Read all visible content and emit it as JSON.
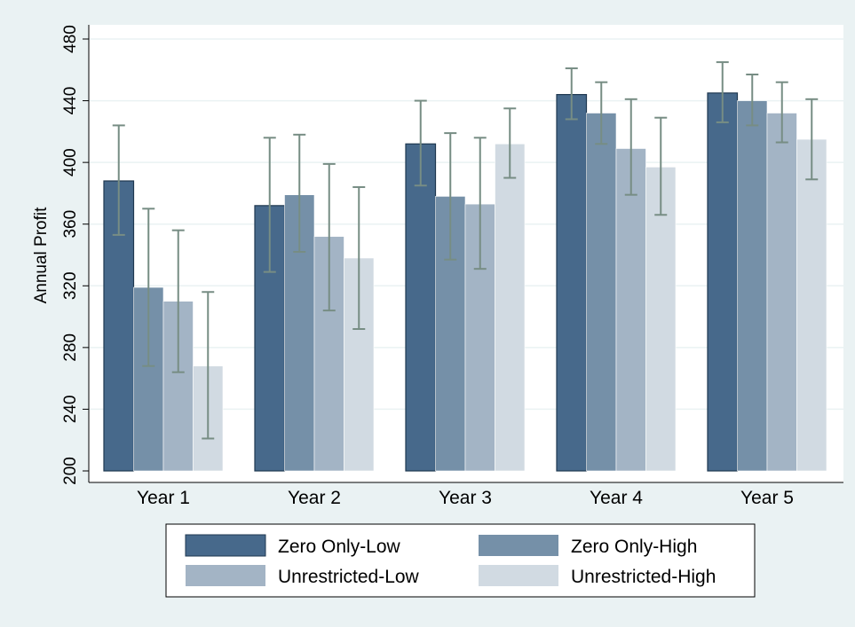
{
  "chart_data": {
    "type": "bar",
    "title": "",
    "xlabel": "",
    "ylabel": "Annual Profit",
    "ylim": [
      200,
      480
    ],
    "yticks": [
      200,
      240,
      280,
      320,
      360,
      400,
      440,
      480
    ],
    "grid": true,
    "legend_position": "bottom",
    "categories": [
      "Year 1",
      "Year 2",
      "Year 3",
      "Year 4",
      "Year 5"
    ],
    "series": [
      {
        "name": "Zero Only-Low",
        "color": "#47698b",
        "values": [
          388,
          372,
          412,
          444,
          445
        ],
        "ci_low": [
          353,
          329,
          385,
          428,
          426
        ],
        "ci_high": [
          424,
          416,
          440,
          461,
          465
        ]
      },
      {
        "name": "Zero Only-High",
        "color": "#7590a8",
        "values": [
          319,
          379,
          378,
          432,
          440
        ],
        "ci_low": [
          268,
          342,
          337,
          412,
          424
        ],
        "ci_high": [
          370,
          418,
          419,
          452,
          457
        ]
      },
      {
        "name": "Unrestricted-Low",
        "color": "#a3b4c5",
        "values": [
          310,
          352,
          373,
          409,
          432
        ],
        "ci_low": [
          264,
          304,
          331,
          379,
          413
        ],
        "ci_high": [
          356,
          399,
          416,
          441,
          452
        ]
      },
      {
        "name": "Unrestricted-High",
        "color": "#d1dae2",
        "values": [
          268,
          338,
          412,
          397,
          415
        ],
        "ci_low": [
          221,
          292,
          390,
          366,
          389
        ],
        "ci_high": [
          316,
          384,
          435,
          429,
          441
        ]
      }
    ],
    "error_bar_color": "#778d84"
  }
}
